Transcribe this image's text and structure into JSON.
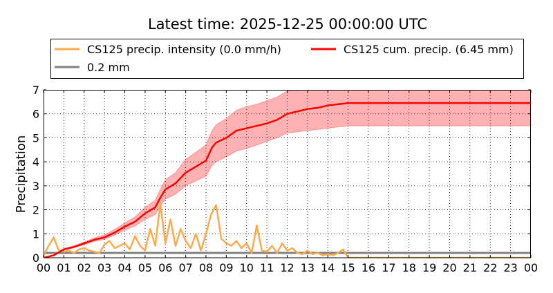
{
  "chart_data": {
    "type": "line",
    "title": "Latest time: 2025-12-25 00:00:00 UTC",
    "xlabel": "",
    "ylabel": "Precipitation",
    "xlim": [
      0,
      24
    ],
    "ylim": [
      0,
      7
    ],
    "grid": true,
    "legend_placement": "top, outside plot",
    "x_tick_labels": [
      "00",
      "01",
      "02",
      "03",
      "04",
      "05",
      "06",
      "07",
      "08",
      "09",
      "10",
      "11",
      "12",
      "13",
      "14",
      "15",
      "16",
      "17",
      "18",
      "19",
      "20",
      "21",
      "22",
      "23",
      "00"
    ],
    "y_tick_labels": [
      "0",
      "1",
      "2",
      "3",
      "4",
      "5",
      "6",
      "7"
    ],
    "series": [
      {
        "name": "CS125 precip. intensity (0.0 mm/h)",
        "color": "#ffa94d",
        "x": [
          0,
          0.25,
          0.5,
          0.75,
          1,
          1.25,
          1.5,
          1.75,
          2,
          2.25,
          2.5,
          2.75,
          3,
          3.25,
          3.5,
          3.75,
          4,
          4.25,
          4.5,
          4.75,
          5,
          5.25,
          5.5,
          5.75,
          6,
          6.25,
          6.5,
          6.75,
          7,
          7.25,
          7.5,
          7.75,
          8,
          8.25,
          8.5,
          8.75,
          9,
          9.25,
          9.5,
          9.75,
          10,
          10.25,
          10.5,
          10.75,
          11,
          11.25,
          11.5,
          11.75,
          12,
          12.25,
          12.5,
          12.75,
          13,
          13.25,
          13.5,
          13.75,
          14,
          14.25,
          14.5,
          14.75,
          15,
          24
        ],
        "y": [
          0.1,
          0.5,
          0.85,
          0.3,
          0.25,
          0.3,
          0.2,
          0.35,
          0.4,
          0.3,
          0.25,
          0.2,
          0.55,
          0.7,
          0.4,
          0.5,
          0.6,
          0.35,
          0.9,
          0.5,
          0.3,
          1.2,
          0.5,
          2.25,
          0.6,
          1.6,
          0.5,
          1.2,
          0.7,
          0.4,
          1.0,
          0.3,
          1.0,
          1.8,
          2.2,
          0.8,
          0.6,
          0.5,
          0.7,
          0.4,
          0.6,
          0.2,
          1.35,
          0.3,
          0.25,
          0.5,
          0.2,
          0.6,
          0.3,
          0.4,
          0.2,
          0.15,
          0.3,
          0.15,
          0.2,
          0.1,
          0.15,
          0.1,
          0.2,
          0.35,
          0.0,
          0.0
        ]
      },
      {
        "name": "CS125 cum. precip. (6.45 mm)",
        "color": "#ff0000",
        "x": [
          0,
          0.5,
          1,
          1.5,
          2,
          2.5,
          3,
          3.5,
          4,
          4.5,
          5,
          5.5,
          5.75,
          6,
          6.5,
          7,
          7.5,
          8,
          8.3,
          8.5,
          9,
          9.5,
          10,
          10.5,
          11,
          11.5,
          12,
          12.5,
          13,
          13.5,
          14,
          14.5,
          15,
          24
        ],
        "y": [
          0,
          0.1,
          0.35,
          0.45,
          0.6,
          0.75,
          0.85,
          1.05,
          1.3,
          1.5,
          1.85,
          2.1,
          2.5,
          2.85,
          3.1,
          3.55,
          3.8,
          4.05,
          4.6,
          4.8,
          5.0,
          5.3,
          5.4,
          5.5,
          5.6,
          5.75,
          6.0,
          6.1,
          6.2,
          6.25,
          6.35,
          6.4,
          6.45,
          6.45
        ],
        "lower": [
          0,
          0.1,
          0.33,
          0.42,
          0.55,
          0.68,
          0.77,
          0.94,
          1.15,
          1.32,
          1.6,
          1.8,
          2.15,
          2.45,
          2.65,
          3.0,
          3.2,
          3.4,
          3.85,
          4.0,
          4.2,
          4.45,
          4.55,
          4.7,
          4.85,
          5.0,
          5.2,
          5.25,
          5.3,
          5.35,
          5.4,
          5.45,
          5.5,
          5.5
        ],
        "upper": [
          0,
          0.12,
          0.38,
          0.5,
          0.66,
          0.83,
          0.95,
          1.18,
          1.45,
          1.7,
          2.1,
          2.4,
          2.85,
          3.25,
          3.55,
          4.1,
          4.4,
          4.7,
          5.3,
          5.55,
          5.8,
          6.15,
          6.3,
          6.4,
          6.55,
          6.7,
          6.95,
          7.05,
          7.15,
          7.2,
          7.3,
          7.35,
          7.4,
          7.4
        ]
      },
      {
        "name": "0.2 mm",
        "color": "#808080",
        "x": [
          0,
          24
        ],
        "y": [
          0.2,
          0.2
        ]
      }
    ]
  }
}
